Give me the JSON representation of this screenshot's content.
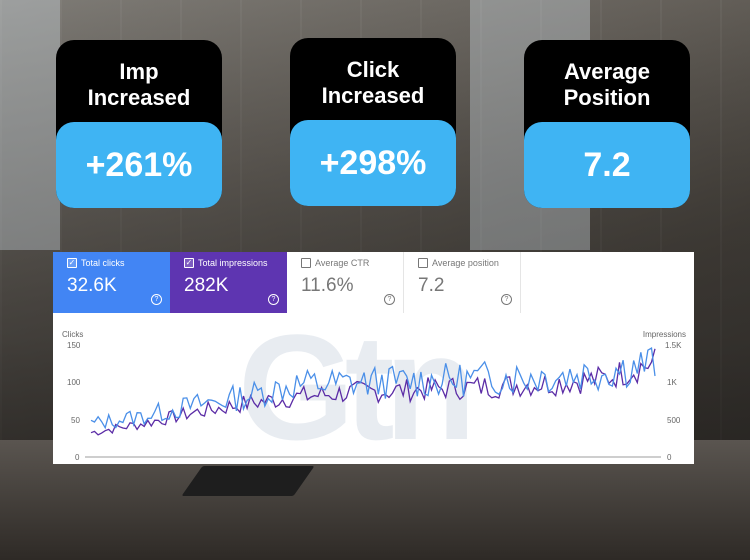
{
  "cards": [
    {
      "title": "Imp\nIncreased",
      "value": "+261%"
    },
    {
      "title": "Click\nIncreased",
      "value": "+298%"
    },
    {
      "title": "Average\nPosition",
      "value": "7.2"
    }
  ],
  "metrics": {
    "clicks": {
      "label": "Total clicks",
      "value": "32.6K",
      "checked": true
    },
    "impressions": {
      "label": "Total impressions",
      "value": "282K",
      "checked": true
    },
    "ctr": {
      "label": "Average CTR",
      "value": "11.6%",
      "checked": false
    },
    "position": {
      "label": "Average position",
      "value": "7.2",
      "checked": false
    }
  },
  "watermark": "Gtn",
  "colors": {
    "card_bg": "#000000",
    "card_value_bg": "#3fb4f3",
    "clicks": "#4285f4",
    "impressions": "#5e35b1",
    "clicks_line": "#4a8fe8",
    "impressions_line": "#5b2ca6"
  },
  "chart_data": {
    "type": "line",
    "left_axis_label": "Clicks",
    "right_axis_label": "Impressions",
    "left_ticks": [
      "150",
      "100",
      "50",
      "0"
    ],
    "right_ticks": [
      "1.5K",
      "1K",
      "500",
      "0"
    ],
    "ylim_left": [
      0,
      150
    ],
    "ylim_right": [
      0,
      1500
    ],
    "series": [
      {
        "name": "Total clicks",
        "axis": "left",
        "trend": [
          45,
          55,
          70,
          82,
          98,
          100,
          102,
          104,
          108,
          110,
          115,
          128
        ]
      },
      {
        "name": "Total impressions",
        "axis": "right",
        "trend": [
          330,
          450,
          600,
          720,
          810,
          870,
          900,
          930,
          960,
          1000,
          1060,
          1280
        ]
      }
    ]
  }
}
